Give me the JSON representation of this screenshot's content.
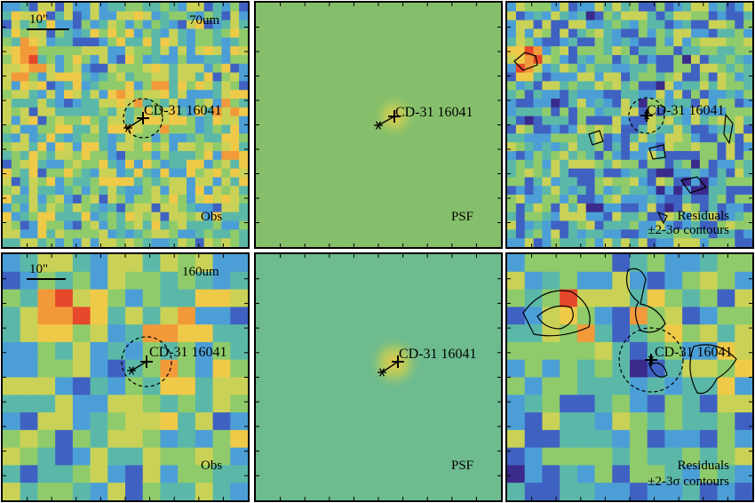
{
  "source_name": "CD-31 16041",
  "scale_label": "10\"",
  "rows": [
    {
      "band": "70um",
      "panels": [
        {
          "kind": "obs",
          "label": "Obs"
        },
        {
          "kind": "psf",
          "label": "PSF"
        },
        {
          "kind": "residual",
          "label_line1": "Residuals",
          "label_line2": "±2-3σ contours"
        }
      ]
    },
    {
      "band": "160um",
      "panels": [
        {
          "kind": "obs",
          "label": "Obs"
        },
        {
          "kind": "psf",
          "label": "PSF"
        },
        {
          "kind": "residual",
          "label_line1": "Residuals",
          "label_line2": "±2-3σ contours"
        }
      ]
    }
  ],
  "colors": {
    "psf_background_70": "#86bf6b",
    "psf_background_160": "#6dbb8f",
    "colormap": [
      "#3a2a8c",
      "#3f62c2",
      "#4c9fd6",
      "#5bb8a8",
      "#8fcb6a",
      "#c9d256",
      "#efc948",
      "#f29a3a",
      "#e5482b"
    ]
  }
}
